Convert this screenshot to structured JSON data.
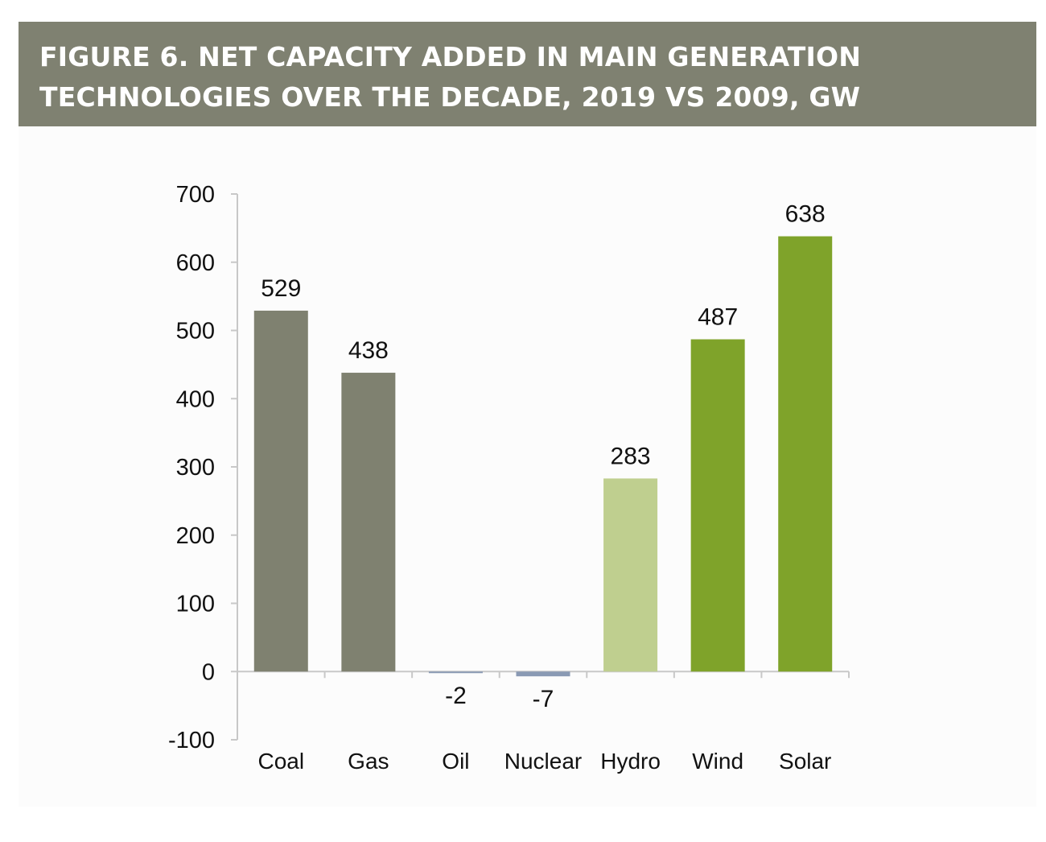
{
  "header": {
    "title_line1": "FIGURE 6. NET CAPACITY ADDED IN MAIN GENERATION",
    "title_line2": "TECHNOLOGIES OVER THE DECADE, 2019 VS 2009, GW"
  },
  "chart_data": {
    "type": "bar",
    "title": "FIGURE 6. NET CAPACITY ADDED IN MAIN GENERATION TECHNOLOGIES OVER THE DECADE, 2019 VS 2009, GW",
    "categories": [
      "Coal",
      "Gas",
      "Oil",
      "Nuclear",
      "Hydro",
      "Wind",
      "Solar"
    ],
    "values": [
      529,
      438,
      -2,
      -7,
      283,
      487,
      638
    ],
    "data_labels": [
      "529",
      "438",
      "-2",
      "-7",
      "283",
      "487",
      "638"
    ],
    "colors": [
      "#7f8170",
      "#7f8170",
      "#8a9ab4",
      "#8a9ab4",
      "#bfcf8f",
      "#7fa32a",
      "#7fa32a"
    ],
    "ylim": [
      -100,
      700
    ],
    "yticks": [
      700,
      600,
      500,
      400,
      300,
      200,
      100,
      0,
      -100
    ],
    "ytick_labels": [
      "700",
      "600",
      "500",
      "400",
      "300",
      "200",
      "100",
      "0",
      "-100"
    ],
    "xlabel": "",
    "ylabel": "",
    "grid": false,
    "legend": "none"
  },
  "colors": {
    "banner": "#7f8171",
    "axis": "#c8c8c8",
    "background": "#fcfcfc"
  }
}
